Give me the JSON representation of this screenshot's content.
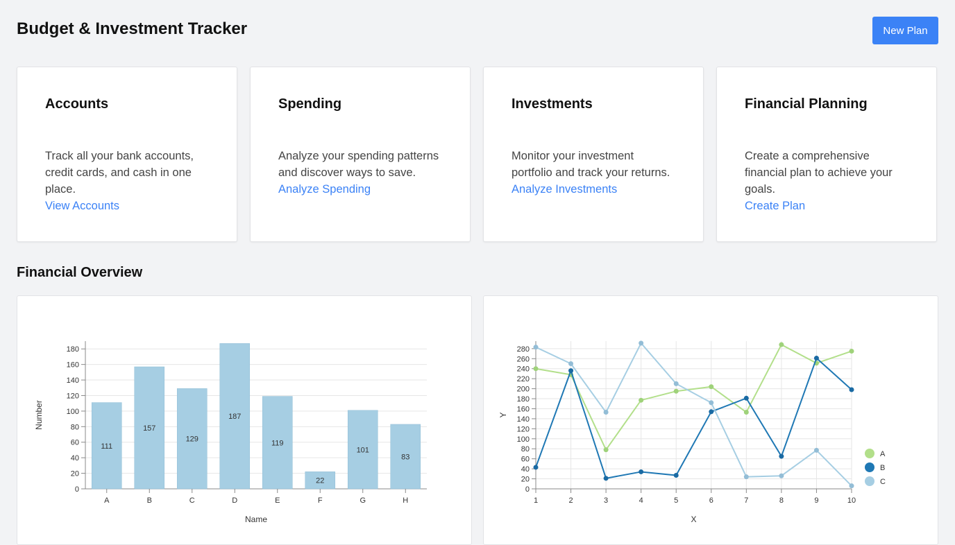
{
  "header": {
    "title": "Budget & Investment Tracker",
    "new_plan_label": "New Plan"
  },
  "cards": [
    {
      "title": "Accounts",
      "description": "Track all your bank accounts, credit cards, and cash in one place.",
      "link": "View Accounts"
    },
    {
      "title": "Spending",
      "description": "Analyze your spending patterns and discover ways to save.",
      "link": "Analyze Spending"
    },
    {
      "title": "Investments",
      "description": "Monitor your investment portfolio and track your returns.",
      "link": "Analyze Investments"
    },
    {
      "title": "Financial Planning",
      "description": "Create a comprehensive financial plan to achieve your goals.",
      "link": "Create Plan"
    }
  ],
  "overview": {
    "title": "Financial Overview"
  },
  "colors": {
    "accent": "#3b82f6",
    "bar": "#a6cee3",
    "series_a": "#b2df8a",
    "series_b": "#1f78b4",
    "series_c": "#a6cee3"
  },
  "chart_data": [
    {
      "type": "bar",
      "categories": [
        "A",
        "B",
        "C",
        "D",
        "E",
        "F",
        "G",
        "H"
      ],
      "values": [
        111,
        157,
        129,
        187,
        119,
        22,
        101,
        83
      ],
      "xlabel": "Name",
      "ylabel": "Number",
      "ylim": [
        0,
        190
      ],
      "yticks": [
        0,
        20,
        40,
        60,
        80,
        100,
        120,
        140,
        160,
        180
      ],
      "grid": true
    },
    {
      "type": "line",
      "x": [
        1,
        2,
        3,
        4,
        5,
        6,
        7,
        8,
        9,
        10
      ],
      "series": [
        {
          "name": "A",
          "values": [
            240,
            228,
            78,
            177,
            195,
            204,
            153,
            288,
            251,
            275
          ]
        },
        {
          "name": "B",
          "values": [
            43,
            236,
            21,
            34,
            27,
            154,
            181,
            65,
            261,
            198
          ]
        },
        {
          "name": "C",
          "values": [
            283,
            250,
            153,
            291,
            210,
            172,
            24,
            26,
            77,
            6
          ]
        }
      ],
      "xlabel": "X",
      "ylabel": "Y",
      "ylim": [
        0,
        295
      ],
      "yticks": [
        0,
        20,
        40,
        60,
        80,
        100,
        120,
        140,
        160,
        180,
        200,
        220,
        240,
        260,
        280
      ],
      "grid": true,
      "legend": "bottom-right"
    }
  ]
}
